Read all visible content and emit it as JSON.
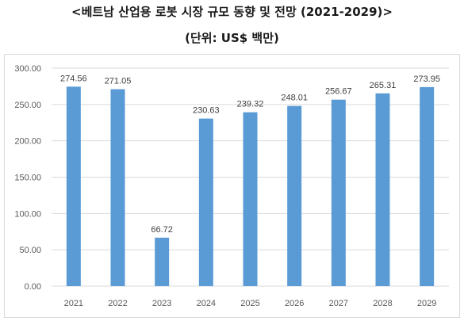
{
  "title": "<베트남 산업용 로봇 시장 규모 동향 및 전망 (2021-2029)>",
  "subtitle": "(단위: US$ 백만)",
  "chart_data": {
    "type": "bar",
    "categories": [
      "2021",
      "2022",
      "2023",
      "2024",
      "2025",
      "2026",
      "2027",
      "2028",
      "2029"
    ],
    "series": [
      {
        "values": [
          274.56,
          271.05,
          66.72,
          230.63,
          239.32,
          248.01,
          256.67,
          265.31,
          273.95
        ]
      }
    ],
    "data_labels": [
      "274.56",
      "271.05",
      "66.72",
      "230.63",
      "239.32",
      "248.01",
      "256.67",
      "265.31",
      "273.95"
    ],
    "yticks": [
      "0.00",
      "50.00",
      "100.00",
      "150.00",
      "200.00",
      "250.00",
      "300.00"
    ],
    "ylim": [
      0,
      300
    ],
    "grid": true,
    "bar_color": "#5b9bd5",
    "grid_color": "#d9d9d9"
  }
}
